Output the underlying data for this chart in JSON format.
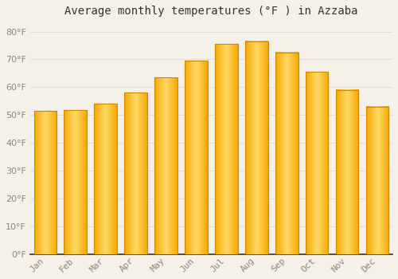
{
  "title": "Average monthly temperatures (°F ) in Azzaba",
  "months": [
    "Jan",
    "Feb",
    "Mar",
    "Apr",
    "May",
    "Jun",
    "Jul",
    "Aug",
    "Sep",
    "Oct",
    "Nov",
    "Dec"
  ],
  "values": [
    51.5,
    51.8,
    54.0,
    58.0,
    63.5,
    69.5,
    75.5,
    76.5,
    72.5,
    65.5,
    59.0,
    53.0
  ],
  "bar_color_left": "#F5A800",
  "bar_color_center": "#FFD966",
  "bar_color_right": "#F5A800",
  "bar_edge_color": "#CC8800",
  "ylim": [
    0,
    83
  ],
  "yticks": [
    0,
    10,
    20,
    30,
    40,
    50,
    60,
    70,
    80
  ],
  "background_color": "#f5f0e8",
  "plot_bg_color": "#f5f0e8",
  "grid_color": "#dddddd",
  "title_fontsize": 10,
  "tick_fontsize": 8,
  "tick_color": "#888888",
  "axis_color": "#333333"
}
